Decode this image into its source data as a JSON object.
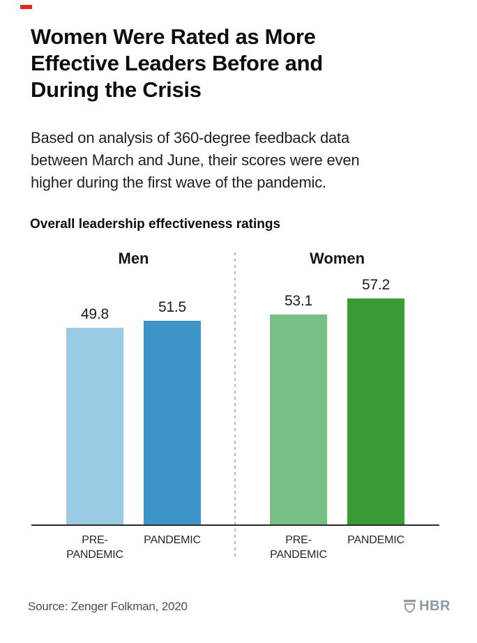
{
  "accent_color": "#e0281e",
  "header": {
    "title": "Women Were Rated as More Effective Leaders Before and During the Crisis",
    "subtitle": "Based on analysis of 360-degree feedback data between March and June, their scores were even higher during the first wave of the pandemic."
  },
  "chart_data": {
    "type": "bar",
    "title": "Overall leadership effectiveness ratings",
    "categories": [
      "PRE-PANDEMIC",
      "PANDEMIC"
    ],
    "category_display": [
      "PRE-\nPANDEMIC",
      "PANDEMIC"
    ],
    "series": [
      {
        "name": "Men",
        "values": [
          49.8,
          51.5
        ],
        "colors": [
          "#9bcae4",
          "#3d94c9"
        ]
      },
      {
        "name": "Women",
        "values": [
          53.1,
          57.2
        ],
        "colors": [
          "#78c086",
          "#3a9c35"
        ]
      }
    ],
    "ylim": [
      0,
      60
    ],
    "value_labels": true,
    "legend": "none",
    "grid": false,
    "group_divider": "dashed"
  },
  "footer": {
    "source": "Source: Zenger Folkman, 2020",
    "brand": "HBR"
  }
}
